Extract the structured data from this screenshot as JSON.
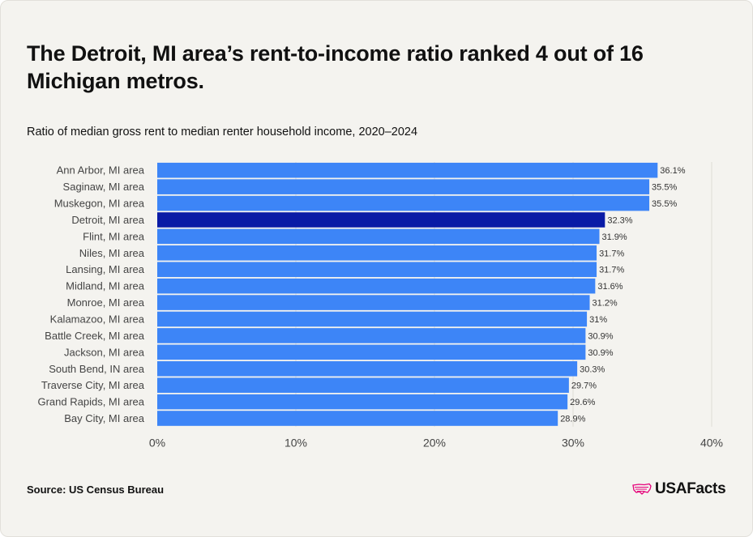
{
  "title": "The Detroit, MI area’s rent-to-income ratio ranked 4 out of 16 Michigan metros.",
  "subtitle": "Ratio of median gross rent to median renter household income, 2020–2024",
  "source": "Source: US Census Bureau",
  "brand": "USAFacts",
  "colors": {
    "bar": "#3d85f7",
    "highlight": "#0a1ba6",
    "grid": "#dedcd5",
    "text": "#444444"
  },
  "chart_data": {
    "type": "bar",
    "orientation": "horizontal",
    "categories": [
      "Ann Arbor, MI area",
      "Saginaw, MI area",
      "Muskegon, MI area",
      "Detroit, MI area",
      "Flint, MI area",
      "Niles, MI area",
      "Lansing, MI area",
      "Midland, MI area",
      "Monroe, MI area",
      "Kalamazoo, MI area",
      "Battle Creek, MI area",
      "Jackson, MI area",
      "South Bend, IN area",
      "Traverse City, MI area",
      "Grand Rapids, MI area",
      "Bay City, MI area"
    ],
    "values": [
      36.1,
      35.5,
      35.5,
      32.3,
      31.9,
      31.7,
      31.7,
      31.6,
      31.2,
      31,
      30.9,
      30.9,
      30.3,
      29.7,
      29.6,
      28.9
    ],
    "value_labels": [
      "36.1%",
      "35.5%",
      "35.5%",
      "32.3%",
      "31.9%",
      "31.7%",
      "31.7%",
      "31.6%",
      "31.2%",
      "31%",
      "30.9%",
      "30.9%",
      "30.3%",
      "29.7%",
      "29.6%",
      "28.9%"
    ],
    "highlight": "Detroit, MI area",
    "xlim": [
      0,
      40
    ],
    "xticks": [
      0,
      10,
      20,
      30,
      40
    ],
    "xtick_labels": [
      "0%",
      "10%",
      "20%",
      "30%",
      "40%"
    ],
    "grid": true
  }
}
